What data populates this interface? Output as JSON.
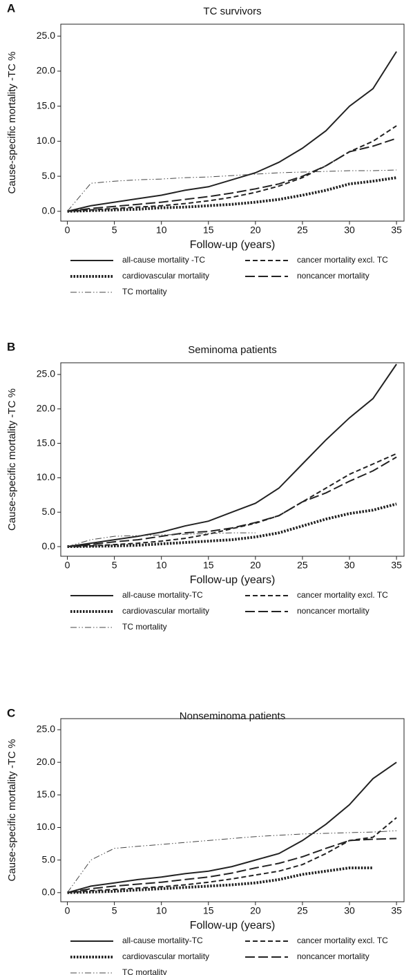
{
  "chart_data": [
    {
      "type": "line",
      "panel": "A",
      "title": "TC survivors",
      "xlabel": "Follow-up (years)",
      "ylabel": "Cause-specific mortality -TC %",
      "x": [
        0,
        2.5,
        5,
        7.5,
        10,
        12.5,
        15,
        17.5,
        20,
        22.5,
        25,
        27.5,
        30,
        32.5,
        35
      ],
      "xlim": [
        -0.7,
        35.8
      ],
      "xticks": [
        0,
        5,
        10,
        15,
        20,
        25,
        30,
        35
      ],
      "ylim": [
        -1.4,
        26.7
      ],
      "yticks": [
        {
          "value": 0,
          "label": "0.0"
        },
        {
          "value": 5,
          "label": "5.0"
        },
        {
          "value": 10,
          "label": "10.0"
        },
        {
          "value": 15,
          "label": "15.0"
        },
        {
          "value": 20,
          "label": "20.0"
        },
        {
          "value": 25,
          "label": "25.0"
        }
      ],
      "series": [
        {
          "name": "all-cause mortality -TC",
          "color": "#222222",
          "dash": "solid",
          "values": [
            0,
            0.8,
            1.3,
            1.8,
            2.3,
            3.0,
            3.5,
            4.5,
            5.5,
            7.0,
            9.0,
            11.5,
            15.0,
            17.5,
            22.8
          ]
        },
        {
          "name": "cancer mortality excl. TC",
          "color": "#222222",
          "dash": "dashed",
          "values": [
            0,
            0.2,
            0.4,
            0.6,
            0.8,
            1.1,
            1.5,
            2.0,
            2.7,
            3.6,
            4.8,
            6.5,
            8.5,
            10.0,
            12.2
          ]
        },
        {
          "name": "cardiovascular mortality",
          "color": "#222222",
          "dash": "dotted",
          "values": [
            0,
            0.1,
            0.2,
            0.3,
            0.5,
            0.6,
            0.8,
            1.0,
            1.3,
            1.7,
            2.3,
            3.0,
            3.9,
            4.3,
            4.8
          ]
        },
        {
          "name": "noncancer mortality",
          "color": "#222222",
          "dash": "longdash",
          "values": [
            0,
            0.4,
            0.7,
            1.0,
            1.3,
            1.7,
            2.1,
            2.6,
            3.2,
            3.9,
            5.0,
            6.5,
            8.5,
            9.3,
            10.4
          ]
        },
        {
          "name": "TC mortality",
          "color": "#444444",
          "dash": "dashdot",
          "values": [
            0,
            4.0,
            4.3,
            4.5,
            4.6,
            4.8,
            4.9,
            5.1,
            5.3,
            5.5,
            5.6,
            5.7,
            5.8,
            5.8,
            5.9
          ]
        }
      ]
    },
    {
      "type": "line",
      "panel": "B",
      "title": "Seminoma patients",
      "xlabel": "Follow-up (years)",
      "ylabel": "Cause-specific mortality -TC %",
      "x": [
        0,
        2.5,
        5,
        7.5,
        10,
        12.5,
        15,
        17.5,
        20,
        22.5,
        25,
        27.5,
        30,
        32.5,
        35
      ],
      "xlim": [
        -0.7,
        35.8
      ],
      "xticks": [
        0,
        5,
        10,
        15,
        20,
        25,
        30,
        35
      ],
      "ylim": [
        -1.4,
        26.7
      ],
      "yticks": [
        {
          "value": 0,
          "label": "0.0"
        },
        {
          "value": 5,
          "label": "5.0"
        },
        {
          "value": 10,
          "label": "10.0"
        },
        {
          "value": 15,
          "label": "15.0"
        },
        {
          "value": 20,
          "label": "20.0"
        },
        {
          "value": 25,
          "label": "25.0"
        }
      ],
      "series": [
        {
          "name": "all-cause mortality-TC",
          "color": "#222222",
          "dash": "solid",
          "values": [
            0,
            0.5,
            1.0,
            1.5,
            2.1,
            3.0,
            3.7,
            5.0,
            6.3,
            8.5,
            12.0,
            15.5,
            18.7,
            21.5,
            26.5
          ]
        },
        {
          "name": "cancer mortality excl. TC",
          "color": "#222222",
          "dash": "dashed",
          "values": [
            0,
            0.1,
            0.3,
            0.5,
            0.8,
            1.2,
            1.8,
            2.6,
            3.4,
            4.5,
            6.5,
            8.5,
            10.5,
            12.0,
            13.5
          ]
        },
        {
          "name": "cardiovascular mortality",
          "color": "#222222",
          "dash": "dotted",
          "values": [
            0,
            0.05,
            0.1,
            0.2,
            0.4,
            0.6,
            0.8,
            1.0,
            1.4,
            2.0,
            3.0,
            4.0,
            4.8,
            5.3,
            6.2
          ]
        },
        {
          "name": "noncancer mortality",
          "color": "#222222",
          "dash": "longdash",
          "values": [
            0,
            0.3,
            0.7,
            1.0,
            1.5,
            2.0,
            2.2,
            2.7,
            3.5,
            4.5,
            6.5,
            7.8,
            9.5,
            11.0,
            13.0
          ]
        },
        {
          "name": "TC mortality",
          "color": "#444444",
          "dash": "dashdot",
          "values": [
            0,
            1.0,
            1.5,
            1.6,
            1.7,
            1.8,
            1.9,
            2.0,
            2.0,
            null,
            null,
            null,
            null,
            null,
            null
          ]
        }
      ]
    },
    {
      "type": "line",
      "panel": "C",
      "title": "Nonseminoma patients",
      "xlabel": "Follow-up (years)",
      "ylabel": "Cause-specific mortality -TC %",
      "x": [
        0,
        2.5,
        5,
        7.5,
        10,
        12.5,
        15,
        17.5,
        20,
        22.5,
        25,
        27.5,
        30,
        32.5,
        35
      ],
      "xlim": [
        -0.7,
        35.8
      ],
      "xticks": [
        0,
        5,
        10,
        15,
        20,
        25,
        30,
        35
      ],
      "ylim": [
        -1.4,
        26.7
      ],
      "yticks": [
        {
          "value": 0,
          "label": "0.0"
        },
        {
          "value": 5,
          "label": "5.0"
        },
        {
          "value": 10,
          "label": "10.0"
        },
        {
          "value": 15,
          "label": "15.0"
        },
        {
          "value": 20,
          "label": "20.0"
        },
        {
          "value": 25,
          "label": "25.0"
        }
      ],
      "series": [
        {
          "name": "all-cause mortality-TC",
          "color": "#222222",
          "dash": "solid",
          "values": [
            0,
            1.0,
            1.5,
            2.0,
            2.4,
            2.9,
            3.3,
            4.0,
            5.0,
            6.0,
            8.0,
            10.5,
            13.5,
            17.5,
            20.0
          ]
        },
        {
          "name": "cancer mortality excl. TC",
          "color": "#222222",
          "dash": "dashed",
          "values": [
            0,
            0.3,
            0.5,
            0.7,
            0.9,
            1.2,
            1.6,
            2.1,
            2.7,
            3.3,
            4.3,
            6.0,
            8.0,
            8.5,
            11.5
          ]
        },
        {
          "name": "cardiovascular mortality",
          "color": "#222222",
          "dash": "dotted",
          "values": [
            0,
            0.1,
            0.2,
            0.4,
            0.6,
            0.8,
            1.0,
            1.2,
            1.5,
            2.0,
            2.8,
            3.3,
            3.8,
            3.8,
            null
          ]
        },
        {
          "name": "noncancer mortality",
          "color": "#222222",
          "dash": "longdash",
          "values": [
            0,
            0.6,
            1.0,
            1.3,
            1.6,
            2.0,
            2.4,
            3.0,
            3.8,
            4.5,
            5.5,
            6.8,
            8.0,
            8.2,
            8.3
          ]
        },
        {
          "name": "TC mortality",
          "color": "#444444",
          "dash": "dashdot",
          "values": [
            0,
            5.0,
            6.8,
            7.1,
            7.4,
            7.7,
            8.0,
            8.3,
            8.6,
            8.8,
            9.0,
            9.1,
            9.2,
            9.3,
            9.5
          ]
        }
      ]
    }
  ]
}
